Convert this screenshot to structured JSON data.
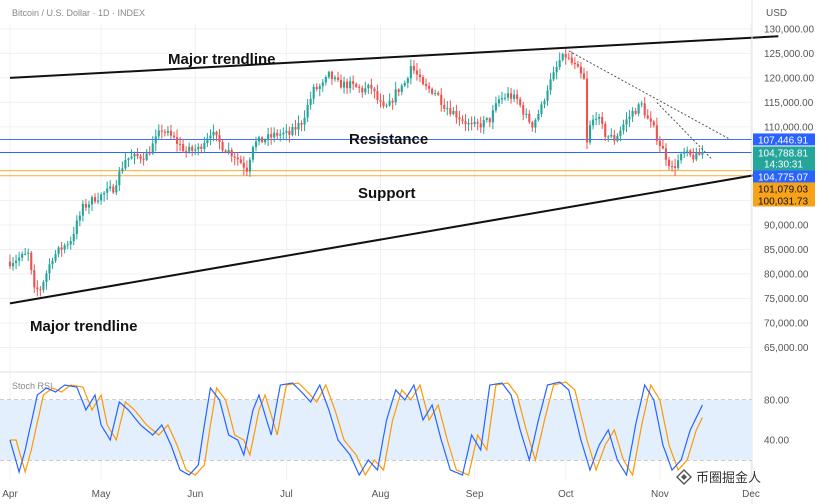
{
  "header": {
    "title": "Bitcoin / U.S. Dollar · 1D · INDEX",
    "currency": "USD"
  },
  "chart_data": {
    "type": "candlestick",
    "ylim": [
      60000,
      131000
    ],
    "y_ticks": [
      {
        "v": 130000,
        "label": "130,000.00"
      },
      {
        "v": 125000,
        "label": "125,000.00"
      },
      {
        "v": 120000,
        "label": "120,000.00"
      },
      {
        "v": 115000,
        "label": "115,000.00"
      },
      {
        "v": 110000,
        "label": "110,000.00"
      },
      {
        "v": 95000,
        "label": "95,000.00"
      },
      {
        "v": 90000,
        "label": "90,000.00"
      },
      {
        "v": 85000,
        "label": "85,000.00"
      },
      {
        "v": 80000,
        "label": "80,000.00"
      },
      {
        "v": 75000,
        "label": "75,000.00"
      },
      {
        "v": 70000,
        "label": "70,000.00"
      },
      {
        "v": 65000,
        "label": "65,000.00"
      }
    ],
    "x_ticks": [
      {
        "label": "Apr",
        "day": 0
      },
      {
        "label": "May",
        "day": 30
      },
      {
        "label": "Jun",
        "day": 61
      },
      {
        "label": "Jul",
        "day": 91
      },
      {
        "label": "Aug",
        "day": 122
      },
      {
        "label": "Sep",
        "day": 153
      },
      {
        "label": "Oct",
        "day": 183
      },
      {
        "label": "Nov",
        "day": 214
      },
      {
        "label": "Dec",
        "day": 244
      }
    ],
    "close_anchors": [
      [
        0,
        82500
      ],
      [
        6,
        84000
      ],
      [
        8,
        76500
      ],
      [
        10,
        77000
      ],
      [
        14,
        83500
      ],
      [
        20,
        87000
      ],
      [
        24,
        93500
      ],
      [
        28,
        95500
      ],
      [
        30,
        96000
      ],
      [
        34,
        97500
      ],
      [
        38,
        103500
      ],
      [
        45,
        104200
      ],
      [
        50,
        109500
      ],
      [
        54,
        107500
      ],
      [
        58,
        105000
      ],
      [
        62,
        105500
      ],
      [
        66,
        109000
      ],
      [
        70,
        106000
      ],
      [
        74,
        104200
      ],
      [
        78,
        101500
      ],
      [
        80,
        106500
      ],
      [
        84,
        107500
      ],
      [
        88,
        108500
      ],
      [
        92,
        108500
      ],
      [
        96,
        111000
      ],
      [
        100,
        117500
      ],
      [
        103,
        118500
      ],
      [
        105,
        120500
      ],
      [
        108,
        118800
      ],
      [
        112,
        118500
      ],
      [
        116,
        117500
      ],
      [
        119,
        118000
      ],
      [
        121,
        115500
      ],
      [
        123,
        113500
      ],
      [
        125,
        114500
      ],
      [
        127,
        117000
      ],
      [
        130,
        119000
      ],
      [
        132,
        122500
      ],
      [
        134,
        120500
      ],
      [
        136,
        118200
      ],
      [
        140,
        117200
      ],
      [
        143,
        114500
      ],
      [
        146,
        113000
      ],
      [
        149,
        111500
      ],
      [
        152,
        110000
      ],
      [
        155,
        110500
      ],
      [
        158,
        111500
      ],
      [
        161,
        115500
      ],
      [
        164,
        116500
      ],
      [
        167,
        115500
      ],
      [
        170,
        112000
      ],
      [
        172,
        110500
      ],
      [
        175,
        114000
      ],
      [
        177,
        118000
      ],
      [
        179,
        120500
      ],
      [
        181,
        123500
      ],
      [
        183,
        124500
      ],
      [
        185,
        123000
      ],
      [
        187,
        121500
      ],
      [
        189,
        119500
      ],
      [
        190,
        106500
      ],
      [
        191,
        110000
      ],
      [
        193,
        112500
      ],
      [
        196,
        108500
      ],
      [
        199,
        107500
      ],
      [
        202,
        110500
      ],
      [
        205,
        113000
      ],
      [
        208,
        114500
      ],
      [
        210,
        111500
      ],
      [
        212,
        109500
      ],
      [
        214,
        106500
      ],
      [
        216,
        104000
      ],
      [
        218,
        101500
      ],
      [
        220,
        103000
      ],
      [
        222,
        104600
      ],
      [
        224,
        104000
      ],
      [
        226,
        103900
      ],
      [
        228,
        104800
      ]
    ],
    "stoch_rsi": {
      "label": "Stoch RSI",
      "ylim": [
        0,
        100
      ],
      "ticks": [
        {
          "v": 80,
          "label": "80.00"
        },
        {
          "v": 40,
          "label": "40.00"
        }
      ],
      "k_anchors": [
        [
          0,
          40
        ],
        [
          3,
          8
        ],
        [
          5,
          30
        ],
        [
          9,
          85
        ],
        [
          12,
          92
        ],
        [
          15,
          88
        ],
        [
          18,
          95
        ],
        [
          22,
          93
        ],
        [
          25,
          70
        ],
        [
          28,
          85
        ],
        [
          30,
          55
        ],
        [
          33,
          40
        ],
        [
          36,
          78
        ],
        [
          39,
          70
        ],
        [
          43,
          55
        ],
        [
          47,
          45
        ],
        [
          50,
          55
        ],
        [
          53,
          35
        ],
        [
          56,
          10
        ],
        [
          59,
          5
        ],
        [
          62,
          15
        ],
        [
          64,
          55
        ],
        [
          66,
          92
        ],
        [
          69,
          80
        ],
        [
          72,
          45
        ],
        [
          75,
          40
        ],
        [
          77,
          25
        ],
        [
          80,
          70
        ],
        [
          82,
          85
        ],
        [
          86,
          45
        ],
        [
          89,
          95
        ],
        [
          93,
          97
        ],
        [
          96,
          88
        ],
        [
          99,
          78
        ],
        [
          102,
          95
        ],
        [
          105,
          70
        ],
        [
          108,
          40
        ],
        [
          112,
          25
        ],
        [
          115,
          5
        ],
        [
          118,
          20
        ],
        [
          121,
          10
        ],
        [
          124,
          60
        ],
        [
          127,
          90
        ],
        [
          130,
          80
        ],
        [
          133,
          95
        ],
        [
          136,
          60
        ],
        [
          139,
          75
        ],
        [
          142,
          40
        ],
        [
          145,
          10
        ],
        [
          149,
          5
        ],
        [
          152,
          45
        ],
        [
          155,
          30
        ],
        [
          158,
          95
        ],
        [
          162,
          97
        ],
        [
          165,
          85
        ],
        [
          168,
          50
        ],
        [
          171,
          20
        ],
        [
          174,
          60
        ],
        [
          177,
          95
        ],
        [
          181,
          98
        ],
        [
          184,
          90
        ],
        [
          188,
          40
        ],
        [
          191,
          10
        ],
        [
          194,
          35
        ],
        [
          197,
          50
        ],
        [
          200,
          20
        ],
        [
          203,
          5
        ],
        [
          206,
          55
        ],
        [
          209,
          95
        ],
        [
          212,
          80
        ],
        [
          215,
          35
        ],
        [
          218,
          10
        ],
        [
          221,
          20
        ],
        [
          224,
          50
        ],
        [
          228,
          75
        ]
      ],
      "d_lag_days": 2
    }
  },
  "annotations": {
    "trend_upper_label": "Major trendline",
    "trend_lower_label": "Major trendline",
    "resistance_label": "Resistance",
    "support_label": "Support",
    "trend_upper": {
      "start": [
        0,
        120000
      ],
      "end": [
        253,
        128500
      ]
    },
    "trend_lower": {
      "start": [
        0,
        74000
      ],
      "end": [
        253,
        101000
      ]
    },
    "downtrend_upper": {
      "start": [
        184,
        125500
      ],
      "end": [
        237,
        107500
      ]
    },
    "downtrend_lower": {
      "start": [
        213,
        115000
      ],
      "end": [
        231,
        103500
      ]
    },
    "levels": [
      {
        "value": 107446.91,
        "label": "107,446.91",
        "color": "#2962ff",
        "text_color": "#ffffff"
      },
      {
        "value": 104788.81,
        "label": "104,788.81",
        "color": "#26a69a",
        "text_color": "#ffffff",
        "sub": "14:30:31"
      },
      {
        "value": 104775.07,
        "label": "104,775.07",
        "color": "#2962ff",
        "text_color": "#ffffff"
      },
      {
        "value": 101079.03,
        "label": "101,079.03",
        "color": "#f7a21b",
        "text_color": "#111111"
      },
      {
        "value": 100031.73,
        "label": "100,031.73",
        "color": "#f7a21b",
        "text_color": "#111111"
      }
    ]
  },
  "colors": {
    "up": "#26a69a",
    "down": "#ef5350",
    "grid": "#f0f0f0",
    "k_line": "#2962ff",
    "d_line": "#ff9800",
    "rsi_band": "#e3effd"
  },
  "watermark": {
    "text": "币圈掘金人",
    "icon": "binance-diamond-icon"
  }
}
